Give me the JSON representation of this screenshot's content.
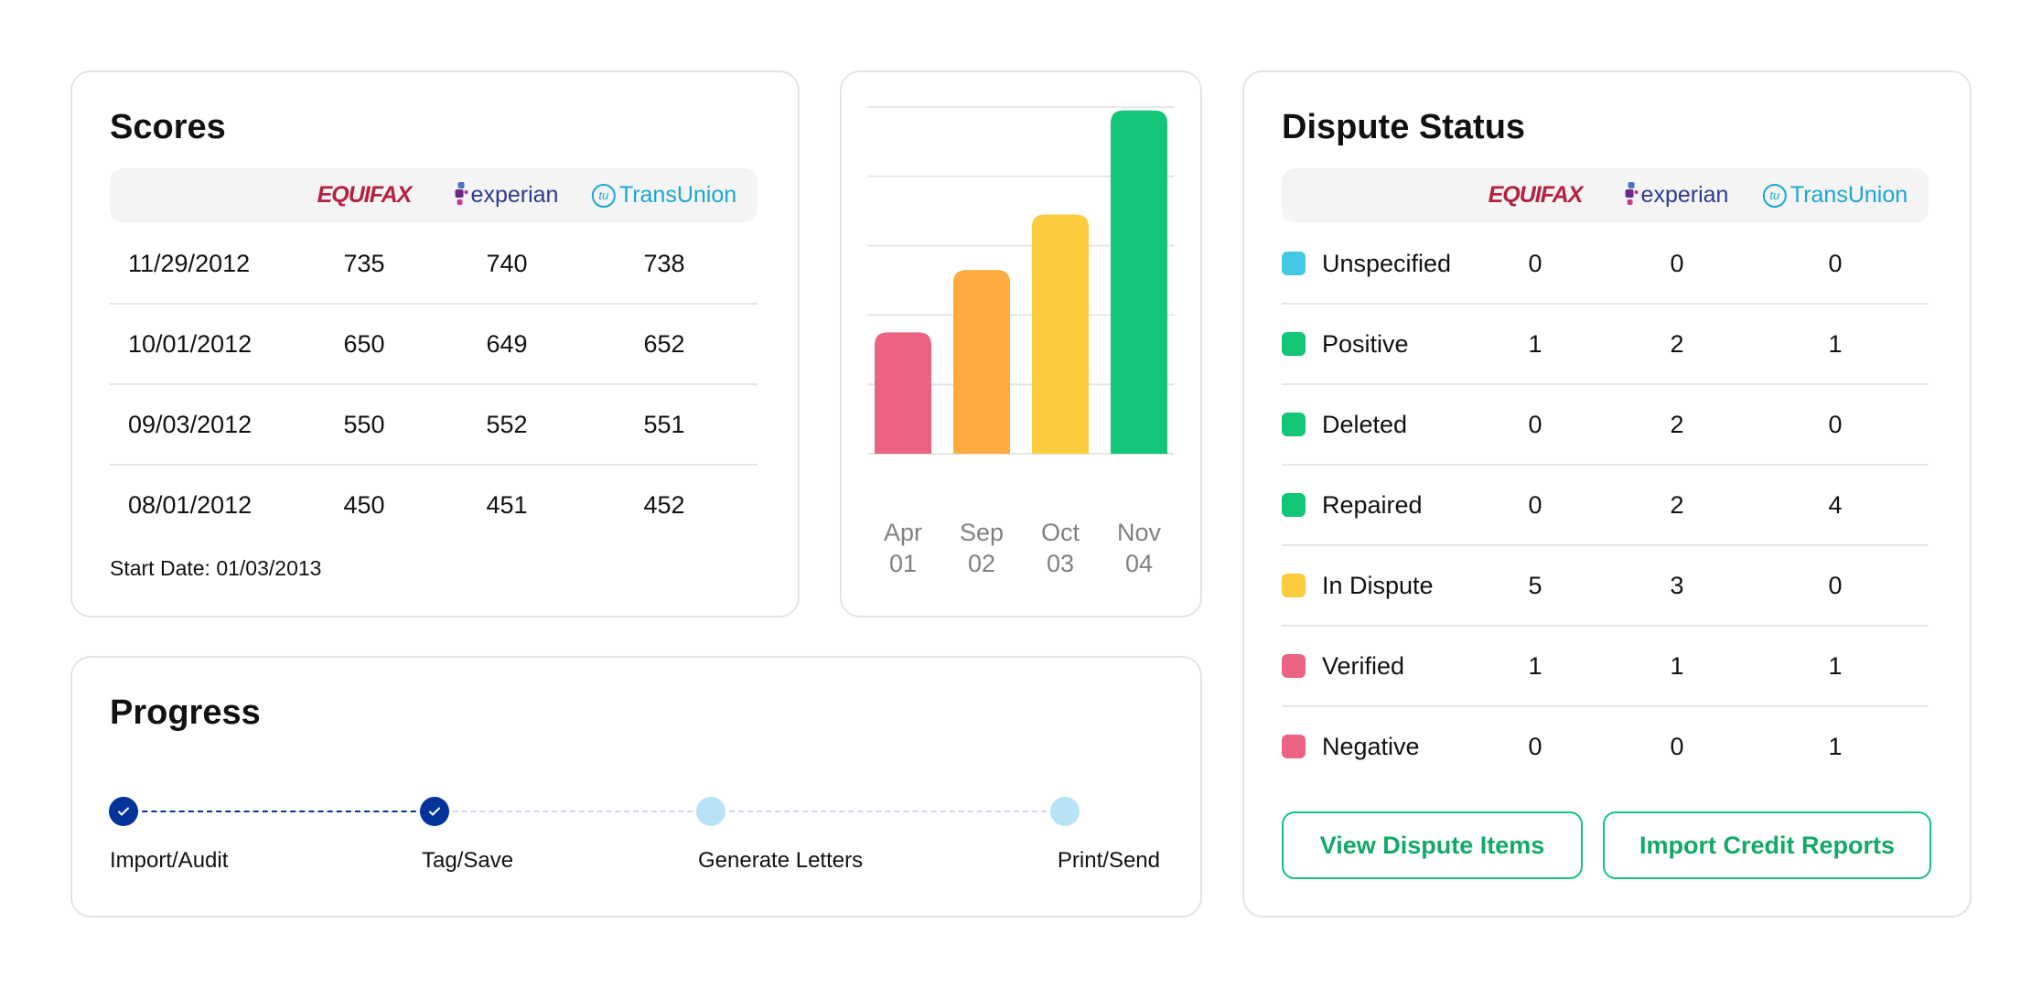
{
  "bureaus": {
    "equifax": "EQUIFAX",
    "experian": "experian",
    "transunion": "TransUnion",
    "transunion_mark": "tu"
  },
  "scores": {
    "title": "Scores",
    "rows": [
      {
        "date": "11/29/2012",
        "equifax": "735",
        "experian": "740",
        "transunion": "738"
      },
      {
        "date": "10/01/2012",
        "equifax": "650",
        "experian": "649",
        "transunion": "652"
      },
      {
        "date": "09/03/2012",
        "equifax": "550",
        "experian": "552",
        "transunion": "551"
      },
      {
        "date": "08/01/2012",
        "equifax": "450",
        "experian": "451",
        "transunion": "452"
      }
    ],
    "start_date": "Start Date: 01/03/2013"
  },
  "chart_data": {
    "type": "bar",
    "categories": [
      "Apr 01",
      "Sep 02",
      "Oct 03",
      "Nov 04"
    ],
    "category_lines": [
      [
        "Apr",
        "01"
      ],
      [
        "Sep",
        "02"
      ],
      [
        "Oct",
        "03"
      ],
      [
        "Nov",
        "04"
      ]
    ],
    "values": [
      1.75,
      2.65,
      3.45,
      4.95
    ],
    "colors": [
      "#ea6482",
      "#fdab3f",
      "#fccb3e",
      "#13c677"
    ],
    "ylim": [
      0,
      5
    ],
    "grid": true,
    "title": "",
    "xlabel": "",
    "ylabel": ""
  },
  "dispute": {
    "title": "Dispute Status",
    "rows": [
      {
        "label": "Unspecified",
        "color": "#45c8e6",
        "equifax": "0",
        "experian": "0",
        "transunion": "0"
      },
      {
        "label": "Positive",
        "color": "#13c677",
        "equifax": "1",
        "experian": "2",
        "transunion": "1"
      },
      {
        "label": "Deleted",
        "color": "#13c677",
        "equifax": "0",
        "experian": "2",
        "transunion": "0"
      },
      {
        "label": "Repaired",
        "color": "#13c677",
        "equifax": "0",
        "experian": "2",
        "transunion": "4"
      },
      {
        "label": "In Dispute",
        "color": "#fccb3e",
        "equifax": "5",
        "experian": "3",
        "transunion": "0"
      },
      {
        "label": "Verified",
        "color": "#ea6482",
        "equifax": "1",
        "experian": "1",
        "transunion": "1"
      },
      {
        "label": "Negative",
        "color": "#ea6482",
        "equifax": "0",
        "experian": "0",
        "transunion": "1"
      }
    ],
    "view_button": "View Dispute Items",
    "import_button": "Import Credit Reports"
  },
  "progress": {
    "title": "Progress",
    "steps": [
      {
        "label": "Import/Audit",
        "done": true
      },
      {
        "label": "Tag/Save",
        "done": true
      },
      {
        "label": "Generate Letters",
        "done": false
      },
      {
        "label": "Print/Send",
        "done": false
      }
    ],
    "colors": {
      "done": "#05339c",
      "pending": "#b8e3f5"
    }
  }
}
